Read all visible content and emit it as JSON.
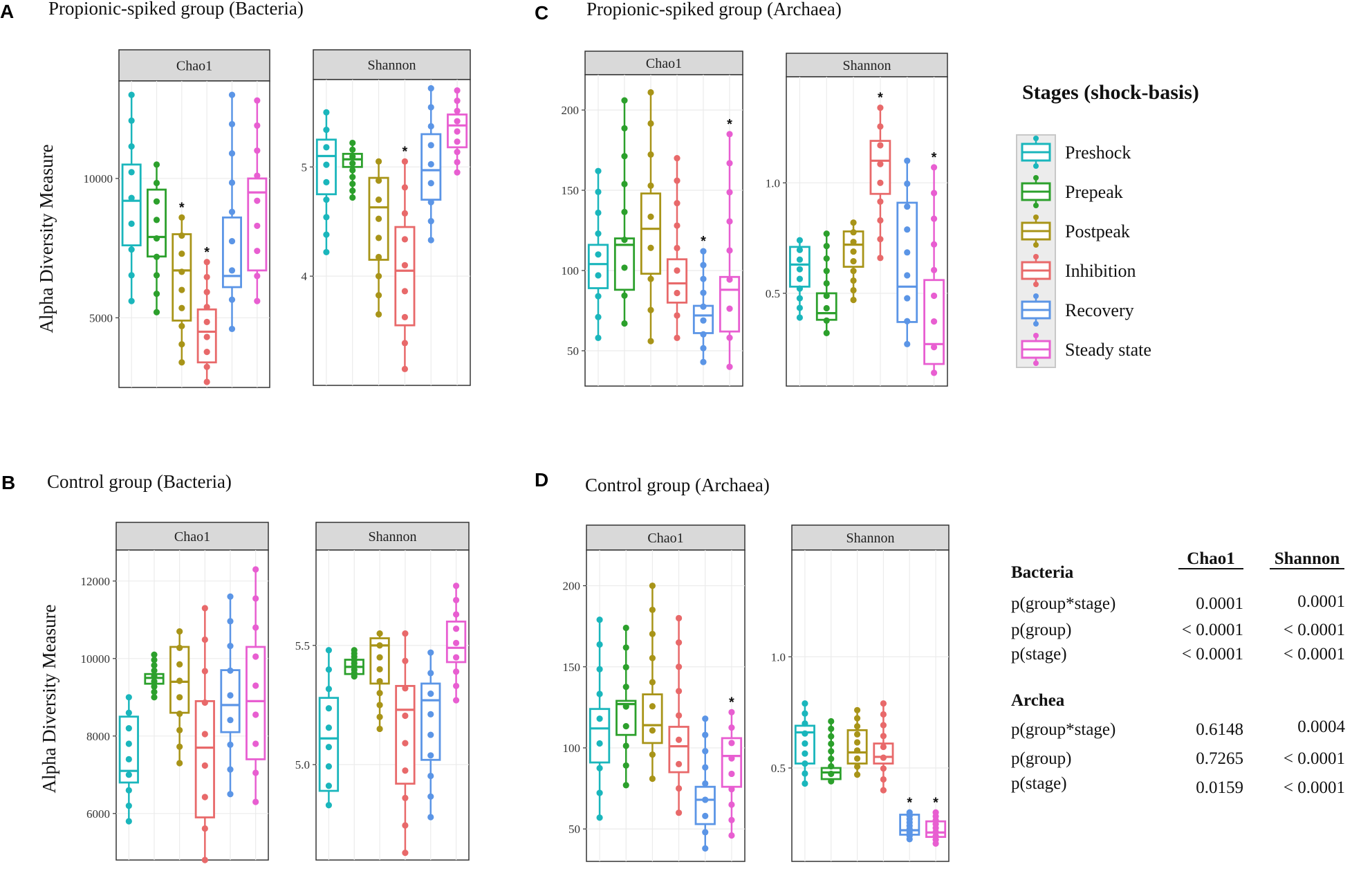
{
  "colors": {
    "Preshock": "#1ab6bc",
    "Prepeak": "#2ca02c",
    "Postpeak": "#a89418",
    "Inhibition": "#e8696a",
    "Recovery": "#5b95e6",
    "Steady state": "#e85ed1"
  },
  "legend": {
    "title": "Stages (shock-basis)",
    "items": [
      "Preshock",
      "Prepeak",
      "Postpeak",
      "Inhibition",
      "Recovery",
      "Steady state"
    ]
  },
  "ylabel": "Alpha Diversity Measure",
  "stats_table": {
    "col_headers": [
      "Chao1",
      "Shannon"
    ],
    "sections": [
      {
        "name": "Bacteria",
        "rows": [
          {
            "label": "p(group*stage)",
            "chao1": "0.0001",
            "shannon": "0.0001"
          },
          {
            "label": "p(group)",
            "chao1": "< 0.0001",
            "shannon": "< 0.0001"
          },
          {
            "label": "p(stage)",
            "chao1": "< 0.0001",
            "shannon": "< 0.0001"
          }
        ]
      },
      {
        "name": "Archea",
        "rows": [
          {
            "label": "p(group*stage)",
            "chao1": "0.6148",
            "shannon": "0.0004"
          },
          {
            "label": "p(group)",
            "chao1": "0.7265",
            "shannon": "< 0.0001"
          },
          {
            "label": "p(stage)",
            "chao1": "0.0159",
            "shannon": "< 0.0001"
          }
        ]
      }
    ]
  },
  "chart_data": [
    {
      "panel": "A",
      "type": "box",
      "title": "Propionic-spiked group (Bacteria)",
      "facets": [
        {
          "strip": "Chao1",
          "ylim": [
            2500,
            13500
          ],
          "ticks": [
            5000,
            10000
          ],
          "tick_labels": [
            "5000",
            "10000"
          ],
          "boxes": [
            {
              "stage": "Preshock",
              "min": 5600,
              "q1": 7600,
              "median": 9200,
              "q3": 10500,
              "max": 13000,
              "sig": false
            },
            {
              "stage": "Prepeak",
              "min": 5200,
              "q1": 7200,
              "median": 7900,
              "q3": 9600,
              "max": 10500,
              "sig": false
            },
            {
              "stage": "Postpeak",
              "min": 3400,
              "q1": 4900,
              "median": 6700,
              "q3": 8000,
              "max": 8600,
              "sig": true
            },
            {
              "stage": "Inhibition",
              "min": 2700,
              "q1": 3400,
              "median": 4500,
              "q3": 5300,
              "max": 7000,
              "sig": true
            },
            {
              "stage": "Recovery",
              "min": 4600,
              "q1": 6100,
              "median": 6500,
              "q3": 8600,
              "max": 13000,
              "sig": false
            },
            {
              "stage": "Steady state",
              "min": 5600,
              "q1": 6700,
              "median": 9500,
              "q3": 10000,
              "max": 12800,
              "sig": false
            }
          ]
        },
        {
          "strip": "Shannon",
          "ylim": [
            3.0,
            5.8
          ],
          "ticks": [
            4,
            5
          ],
          "tick_labels": [
            "4",
            "5"
          ],
          "boxes": [
            {
              "stage": "Preshock",
              "min": 4.22,
              "q1": 4.75,
              "median": 5.1,
              "q3": 5.25,
              "max": 5.5,
              "sig": false
            },
            {
              "stage": "Prepeak",
              "min": 4.72,
              "q1": 5.0,
              "median": 5.07,
              "q3": 5.12,
              "max": 5.22,
              "sig": false
            },
            {
              "stage": "Postpeak",
              "min": 3.65,
              "q1": 4.15,
              "median": 4.63,
              "q3": 4.9,
              "max": 5.05,
              "sig": false
            },
            {
              "stage": "Inhibition",
              "min": 3.15,
              "q1": 3.55,
              "median": 4.05,
              "q3": 4.45,
              "max": 5.05,
              "sig": true
            },
            {
              "stage": "Recovery",
              "min": 4.33,
              "q1": 4.7,
              "median": 4.97,
              "q3": 5.3,
              "max": 5.72,
              "sig": false
            },
            {
              "stage": "Steady state",
              "min": 4.95,
              "q1": 5.18,
              "median": 5.38,
              "q3": 5.48,
              "max": 5.7,
              "sig": false
            }
          ]
        }
      ]
    },
    {
      "panel": "B",
      "type": "box",
      "title": "Control group (Bacteria)",
      "facets": [
        {
          "strip": "Chao1",
          "ylim": [
            4800,
            12800
          ],
          "ticks": [
            6000,
            8000,
            10000,
            12000
          ],
          "tick_labels": [
            "6000",
            "8000",
            "10000",
            "12000"
          ],
          "boxes": [
            {
              "stage": "Preshock",
              "min": 5800,
              "q1": 6800,
              "median": 7100,
              "q3": 8500,
              "max": 9000,
              "sig": false
            },
            {
              "stage": "Prepeak",
              "min": 9000,
              "q1": 9350,
              "median": 9500,
              "q3": 9600,
              "max": 10100,
              "sig": false
            },
            {
              "stage": "Postpeak",
              "min": 7300,
              "q1": 8600,
              "median": 9400,
              "q3": 10300,
              "max": 10700,
              "sig": false
            },
            {
              "stage": "Inhibition",
              "min": 4800,
              "q1": 5900,
              "median": 7700,
              "q3": 8900,
              "max": 11300,
              "sig": false
            },
            {
              "stage": "Recovery",
              "min": 6500,
              "q1": 8100,
              "median": 8800,
              "q3": 9700,
              "max": 11600,
              "sig": false
            },
            {
              "stage": "Steady state",
              "min": 6300,
              "q1": 7400,
              "median": 8900,
              "q3": 10300,
              "max": 12300,
              "sig": false
            }
          ]
        },
        {
          "strip": "Shannon",
          "ylim": [
            4.6,
            5.9
          ],
          "ticks": [
            5.0,
            5.5
          ],
          "tick_labels": [
            "5.0",
            "5.5"
          ],
          "boxes": [
            {
              "stage": "Preshock",
              "min": 4.83,
              "q1": 4.89,
              "median": 5.11,
              "q3": 5.28,
              "max": 5.48,
              "sig": false
            },
            {
              "stage": "Prepeak",
              "min": 5.37,
              "q1": 5.38,
              "median": 5.41,
              "q3": 5.44,
              "max": 5.48,
              "sig": false
            },
            {
              "stage": "Postpeak",
              "min": 5.15,
              "q1": 5.34,
              "median": 5.5,
              "q3": 5.53,
              "max": 5.55,
              "sig": false
            },
            {
              "stage": "Inhibition",
              "min": 4.63,
              "q1": 4.92,
              "median": 5.23,
              "q3": 5.33,
              "max": 5.55,
              "sig": false
            },
            {
              "stage": "Recovery",
              "min": 4.78,
              "q1": 5.02,
              "median": 5.27,
              "q3": 5.34,
              "max": 5.47,
              "sig": false
            },
            {
              "stage": "Steady state",
              "min": 5.27,
              "q1": 5.43,
              "median": 5.49,
              "q3": 5.6,
              "max": 5.75,
              "sig": false
            }
          ]
        }
      ]
    },
    {
      "panel": "C",
      "type": "box",
      "title": "Propionic-spiked group (Archaea)",
      "facets": [
        {
          "strip": "Chao1",
          "ylim": [
            28,
            222
          ],
          "ticks": [
            50,
            100,
            150,
            200
          ],
          "tick_labels": [
            "50",
            "100",
            "150",
            "200"
          ],
          "boxes": [
            {
              "stage": "Preshock",
              "min": 58,
              "q1": 89,
              "median": 104,
              "q3": 116,
              "max": 162,
              "sig": false
            },
            {
              "stage": "Prepeak",
              "min": 67,
              "q1": 88,
              "median": 116,
              "q3": 120,
              "max": 206,
              "sig": false
            },
            {
              "stage": "Postpeak",
              "min": 56,
              "q1": 98,
              "median": 126,
              "q3": 148,
              "max": 211,
              "sig": false
            },
            {
              "stage": "Inhibition",
              "min": 58,
              "q1": 80,
              "median": 92,
              "q3": 107,
              "max": 170,
              "sig": false
            },
            {
              "stage": "Recovery",
              "min": 43,
              "q1": 61,
              "median": 72,
              "q3": 78,
              "max": 112,
              "sig": true
            },
            {
              "stage": "Steady state",
              "min": 40,
              "q1": 62,
              "median": 88,
              "q3": 96,
              "max": 185,
              "sig": true
            }
          ]
        },
        {
          "strip": "Shannon",
          "ylim": [
            0.08,
            1.48
          ],
          "ticks": [
            0.5,
            1.0
          ],
          "tick_labels": [
            "0.5",
            "1.0"
          ],
          "boxes": [
            {
              "stage": "Preshock",
              "min": 0.39,
              "q1": 0.53,
              "median": 0.63,
              "q3": 0.71,
              "max": 0.74,
              "sig": false
            },
            {
              "stage": "Prepeak",
              "min": 0.32,
              "q1": 0.38,
              "median": 0.41,
              "q3": 0.5,
              "max": 0.77,
              "sig": false
            },
            {
              "stage": "Postpeak",
              "min": 0.47,
              "q1": 0.62,
              "median": 0.72,
              "q3": 0.78,
              "max": 0.82,
              "sig": false
            },
            {
              "stage": "Inhibition",
              "min": 0.66,
              "q1": 0.95,
              "median": 1.1,
              "q3": 1.19,
              "max": 1.34,
              "sig": true
            },
            {
              "stage": "Recovery",
              "min": 0.27,
              "q1": 0.37,
              "median": 0.53,
              "q3": 0.91,
              "max": 1.1,
              "sig": false
            },
            {
              "stage": "Steady state",
              "min": 0.14,
              "q1": 0.18,
              "median": 0.27,
              "q3": 0.56,
              "max": 1.07,
              "sig": true
            }
          ]
        }
      ]
    },
    {
      "panel": "D",
      "type": "box",
      "title": "Control group (Archaea)",
      "facets": [
        {
          "strip": "Chao1",
          "ylim": [
            30,
            222
          ],
          "ticks": [
            50,
            100,
            150,
            200
          ],
          "tick_labels": [
            "50",
            "100",
            "150",
            "200"
          ],
          "boxes": [
            {
              "stage": "Preshock",
              "min": 57,
              "q1": 91,
              "median": 112,
              "q3": 124,
              "max": 179,
              "sig": false
            },
            {
              "stage": "Prepeak",
              "min": 77,
              "q1": 108,
              "median": 127,
              "q3": 129,
              "max": 174,
              "sig": false
            },
            {
              "stage": "Postpeak",
              "min": 81,
              "q1": 103,
              "median": 114,
              "q3": 133,
              "max": 200,
              "sig": false
            },
            {
              "stage": "Inhibition",
              "min": 60,
              "q1": 85,
              "median": 101,
              "q3": 113,
              "max": 180,
              "sig": false
            },
            {
              "stage": "Recovery",
              "min": 38,
              "q1": 53,
              "median": 68,
              "q3": 76,
              "max": 118,
              "sig": false
            },
            {
              "stage": "Steady state",
              "min": 46,
              "q1": 76,
              "median": 95,
              "q3": 106,
              "max": 122,
              "sig": true
            }
          ]
        },
        {
          "strip": "Shannon",
          "ylim": [
            0.08,
            1.48
          ],
          "ticks": [
            0.5,
            1.0
          ],
          "tick_labels": [
            "0.5",
            "1.0"
          ],
          "boxes": [
            {
              "stage": "Preshock",
              "min": 0.43,
              "q1": 0.52,
              "median": 0.66,
              "q3": 0.69,
              "max": 0.79,
              "sig": false
            },
            {
              "stage": "Prepeak",
              "min": 0.44,
              "q1": 0.45,
              "median": 0.48,
              "q3": 0.5,
              "max": 0.71,
              "sig": false
            },
            {
              "stage": "Postpeak",
              "min": 0.47,
              "q1": 0.52,
              "median": 0.57,
              "q3": 0.67,
              "max": 0.76,
              "sig": false
            },
            {
              "stage": "Inhibition",
              "min": 0.4,
              "q1": 0.52,
              "median": 0.55,
              "q3": 0.61,
              "max": 0.79,
              "sig": false
            },
            {
              "stage": "Recovery",
              "min": 0.18,
              "q1": 0.2,
              "median": 0.22,
              "q3": 0.29,
              "max": 0.3,
              "sig": true
            },
            {
              "stage": "Steady state",
              "min": 0.16,
              "q1": 0.19,
              "median": 0.21,
              "q3": 0.26,
              "max": 0.3,
              "sig": true
            }
          ]
        }
      ]
    }
  ]
}
